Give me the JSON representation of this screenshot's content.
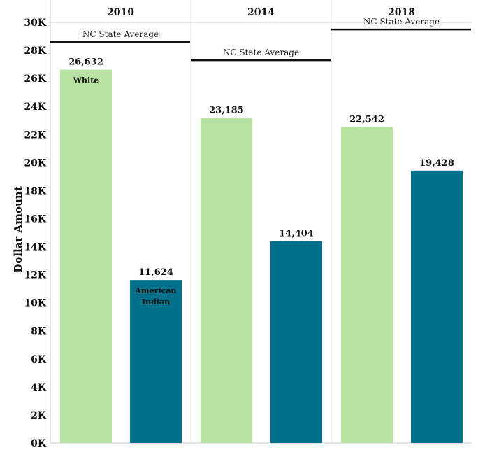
{
  "chart_data": {
    "type": "bar",
    "ylabel": "Dollar Amount",
    "ylim": [
      0,
      32000
    ],
    "y_ticks": [
      {
        "value": 0,
        "label": "0K"
      },
      {
        "value": 2000,
        "label": "2K"
      },
      {
        "value": 4000,
        "label": "4K"
      },
      {
        "value": 6000,
        "label": "6K"
      },
      {
        "value": 8000,
        "label": "8K"
      },
      {
        "value": 10000,
        "label": "10K"
      },
      {
        "value": 12000,
        "label": "12K"
      },
      {
        "value": 14000,
        "label": "14K"
      },
      {
        "value": 16000,
        "label": "16K"
      },
      {
        "value": 18000,
        "label": "18K"
      },
      {
        "value": 20000,
        "label": "20K"
      },
      {
        "value": 22000,
        "label": "22K"
      },
      {
        "value": 24000,
        "label": "24K"
      },
      {
        "value": 26000,
        "label": "26K"
      },
      {
        "value": 28000,
        "label": "28K"
      },
      {
        "value": 30000,
        "label": "30K"
      }
    ],
    "categories": [
      "2010",
      "2014",
      "2018"
    ],
    "series": [
      {
        "name": "White",
        "color": "#b6e3a1",
        "text_color": "#111111",
        "values": [
          26632,
          23185,
          22542
        ],
        "labels": [
          "26,632",
          "23,185",
          "22,542"
        ]
      },
      {
        "name": "American Indian",
        "color": "#01708a",
        "text_color": "#111111",
        "values": [
          11624,
          14404,
          19428
        ],
        "labels": [
          "11,624",
          "14,404",
          "19,428"
        ]
      }
    ],
    "in_bar_labels": [
      {
        "panel": 0,
        "series": 0,
        "lines": [
          "White"
        ]
      },
      {
        "panel": 0,
        "series": 1,
        "lines": [
          "American",
          "Indian"
        ]
      }
    ],
    "reference_lines": [
      {
        "panel": 0,
        "label": "NC State Average",
        "value": 28600
      },
      {
        "panel": 1,
        "label": "NC State Average",
        "value": 27300
      },
      {
        "panel": 2,
        "label": "NC State Average",
        "value": 29500
      }
    ],
    "grid": false,
    "legend": "none"
  }
}
